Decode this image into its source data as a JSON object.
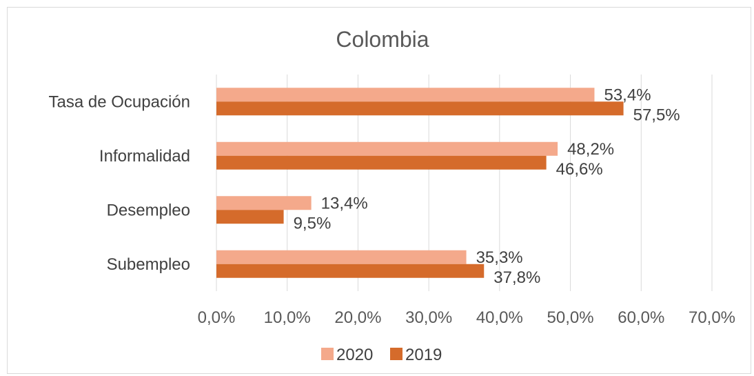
{
  "chart_data": {
    "type": "bar",
    "orientation": "horizontal",
    "title": "Colombia",
    "categories": [
      "Tasa de Ocupación",
      "Informalidad",
      "Desempleo",
      "Subempleo"
    ],
    "series": [
      {
        "name": "2020",
        "values": [
          53.4,
          48.2,
          13.4,
          35.3
        ],
        "labels": [
          "53,4%",
          "48,2%",
          "13,4%",
          "35,3%"
        ],
        "color": "#F4A98B"
      },
      {
        "name": "2019",
        "values": [
          57.5,
          46.6,
          9.5,
          37.8
        ],
        "labels": [
          "57,5%",
          "46,6%",
          "9,5%",
          "37,8%"
        ],
        "color": "#D56B2B"
      }
    ],
    "xlim": [
      0,
      70
    ],
    "xticks": [
      "0,0%",
      "10,0%",
      "20,0%",
      "30,0%",
      "40,0%",
      "50,0%",
      "60,0%",
      "70,0%"
    ],
    "grid": true,
    "legend_position": "bottom"
  }
}
